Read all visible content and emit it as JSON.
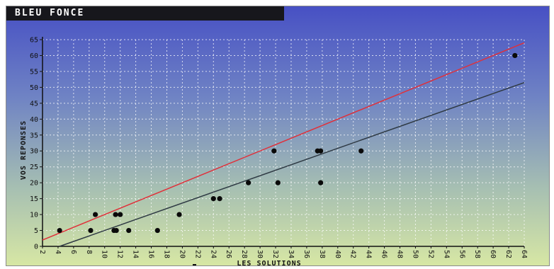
{
  "window": {
    "title": "BLEU FONCE"
  },
  "chart_data": {
    "type": "scatter",
    "title": "BLEU FONCE",
    "xlabel": "LES SOLUTIONS",
    "ylabel": "VOS REPONSES",
    "xlim": [
      2,
      64
    ],
    "ylim": [
      0,
      65
    ],
    "xticks": [
      2,
      4,
      6,
      8,
      10,
      12,
      14,
      16,
      18,
      20,
      22,
      24,
      26,
      28,
      30,
      32,
      34,
      36,
      38,
      40,
      42,
      44,
      46,
      48,
      50,
      52,
      54,
      56,
      58,
      60,
      62,
      64
    ],
    "yticks": [
      0,
      5,
      10,
      15,
      20,
      25,
      30,
      35,
      40,
      45,
      50,
      55,
      60,
      65
    ],
    "grid": true,
    "x": [
      4.2,
      8.2,
      8.8,
      11.2,
      11.4,
      11.5,
      12.0,
      13.1,
      16.8,
      19.6,
      24.0,
      24.8,
      28.5,
      31.8,
      32.3,
      37.4,
      37.8,
      37.8,
      43.0,
      62.8
    ],
    "y": [
      5,
      5,
      10,
      5,
      10,
      5,
      10,
      5,
      5,
      10,
      15,
      15,
      20,
      30,
      20,
      30,
      30,
      20,
      30,
      60
    ],
    "lines": [
      {
        "color": "#e0303a",
        "x": [
          2,
          64
        ],
        "y": [
          2,
          64
        ]
      },
      {
        "color": "#2f3a44",
        "x": [
          4.2,
          64
        ],
        "y": [
          0,
          51.5
        ]
      }
    ],
    "colors": {
      "points": "#0a0a0a",
      "grid": "#ffffff"
    }
  }
}
